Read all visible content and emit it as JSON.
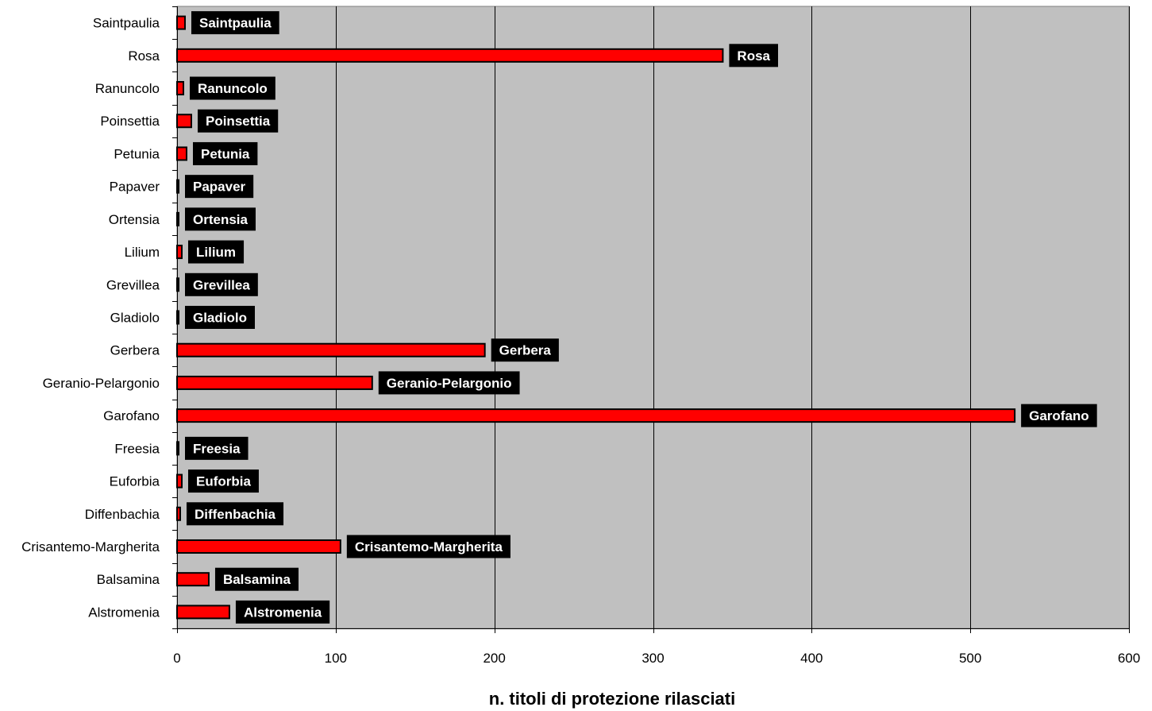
{
  "chart_data": {
    "type": "bar",
    "orientation": "horizontal",
    "title": "",
    "xlabel": "n. titoli di protezione rilasciati",
    "ylabel": "",
    "xlim": [
      0,
      600
    ],
    "x_ticks": [
      0,
      100,
      200,
      300,
      400,
      500,
      600
    ],
    "grid": "vertical",
    "legend": "none",
    "categories": [
      "Alstromenia",
      "Balsamina",
      "Crisantemo-Margherita",
      "Diffenbachia",
      "Euforbia",
      "Freesia",
      "Garofano",
      "Geranio-Pelargonio",
      "Gerbera",
      "Gladiolo",
      "Grevillea",
      "Lilium",
      "Ortensia",
      "Papaver",
      "Petunia",
      "Poinsettia",
      "Ranuncolo",
      "Rosa",
      "Saintpaulia"
    ],
    "values": [
      33,
      20,
      103,
      2,
      3,
      1,
      528,
      123,
      194,
      1,
      1,
      3,
      1,
      1,
      6,
      9,
      4,
      344,
      5
    ],
    "data_labels": [
      "Alstromenia",
      "Balsamina",
      "Crisantemo-Margherita",
      "Diffenbachia",
      "Euforbia",
      "Freesia",
      "Garofano",
      "Geranio-Pelargonio",
      "Gerbera",
      "Gladiolo",
      "Grevillea",
      "Lilium",
      "Ortensia",
      "Papaver",
      "Petunia",
      "Poinsettia",
      "Ranuncolo",
      "Rosa",
      "Saintpaulia"
    ],
    "colors": {
      "bar_fill": "#ff0000",
      "bar_stroke": "#000000",
      "plot_background": "#c0c0c0",
      "gridline": "#000000",
      "data_label_background": "#000000",
      "data_label_text": "#ffffff"
    }
  }
}
